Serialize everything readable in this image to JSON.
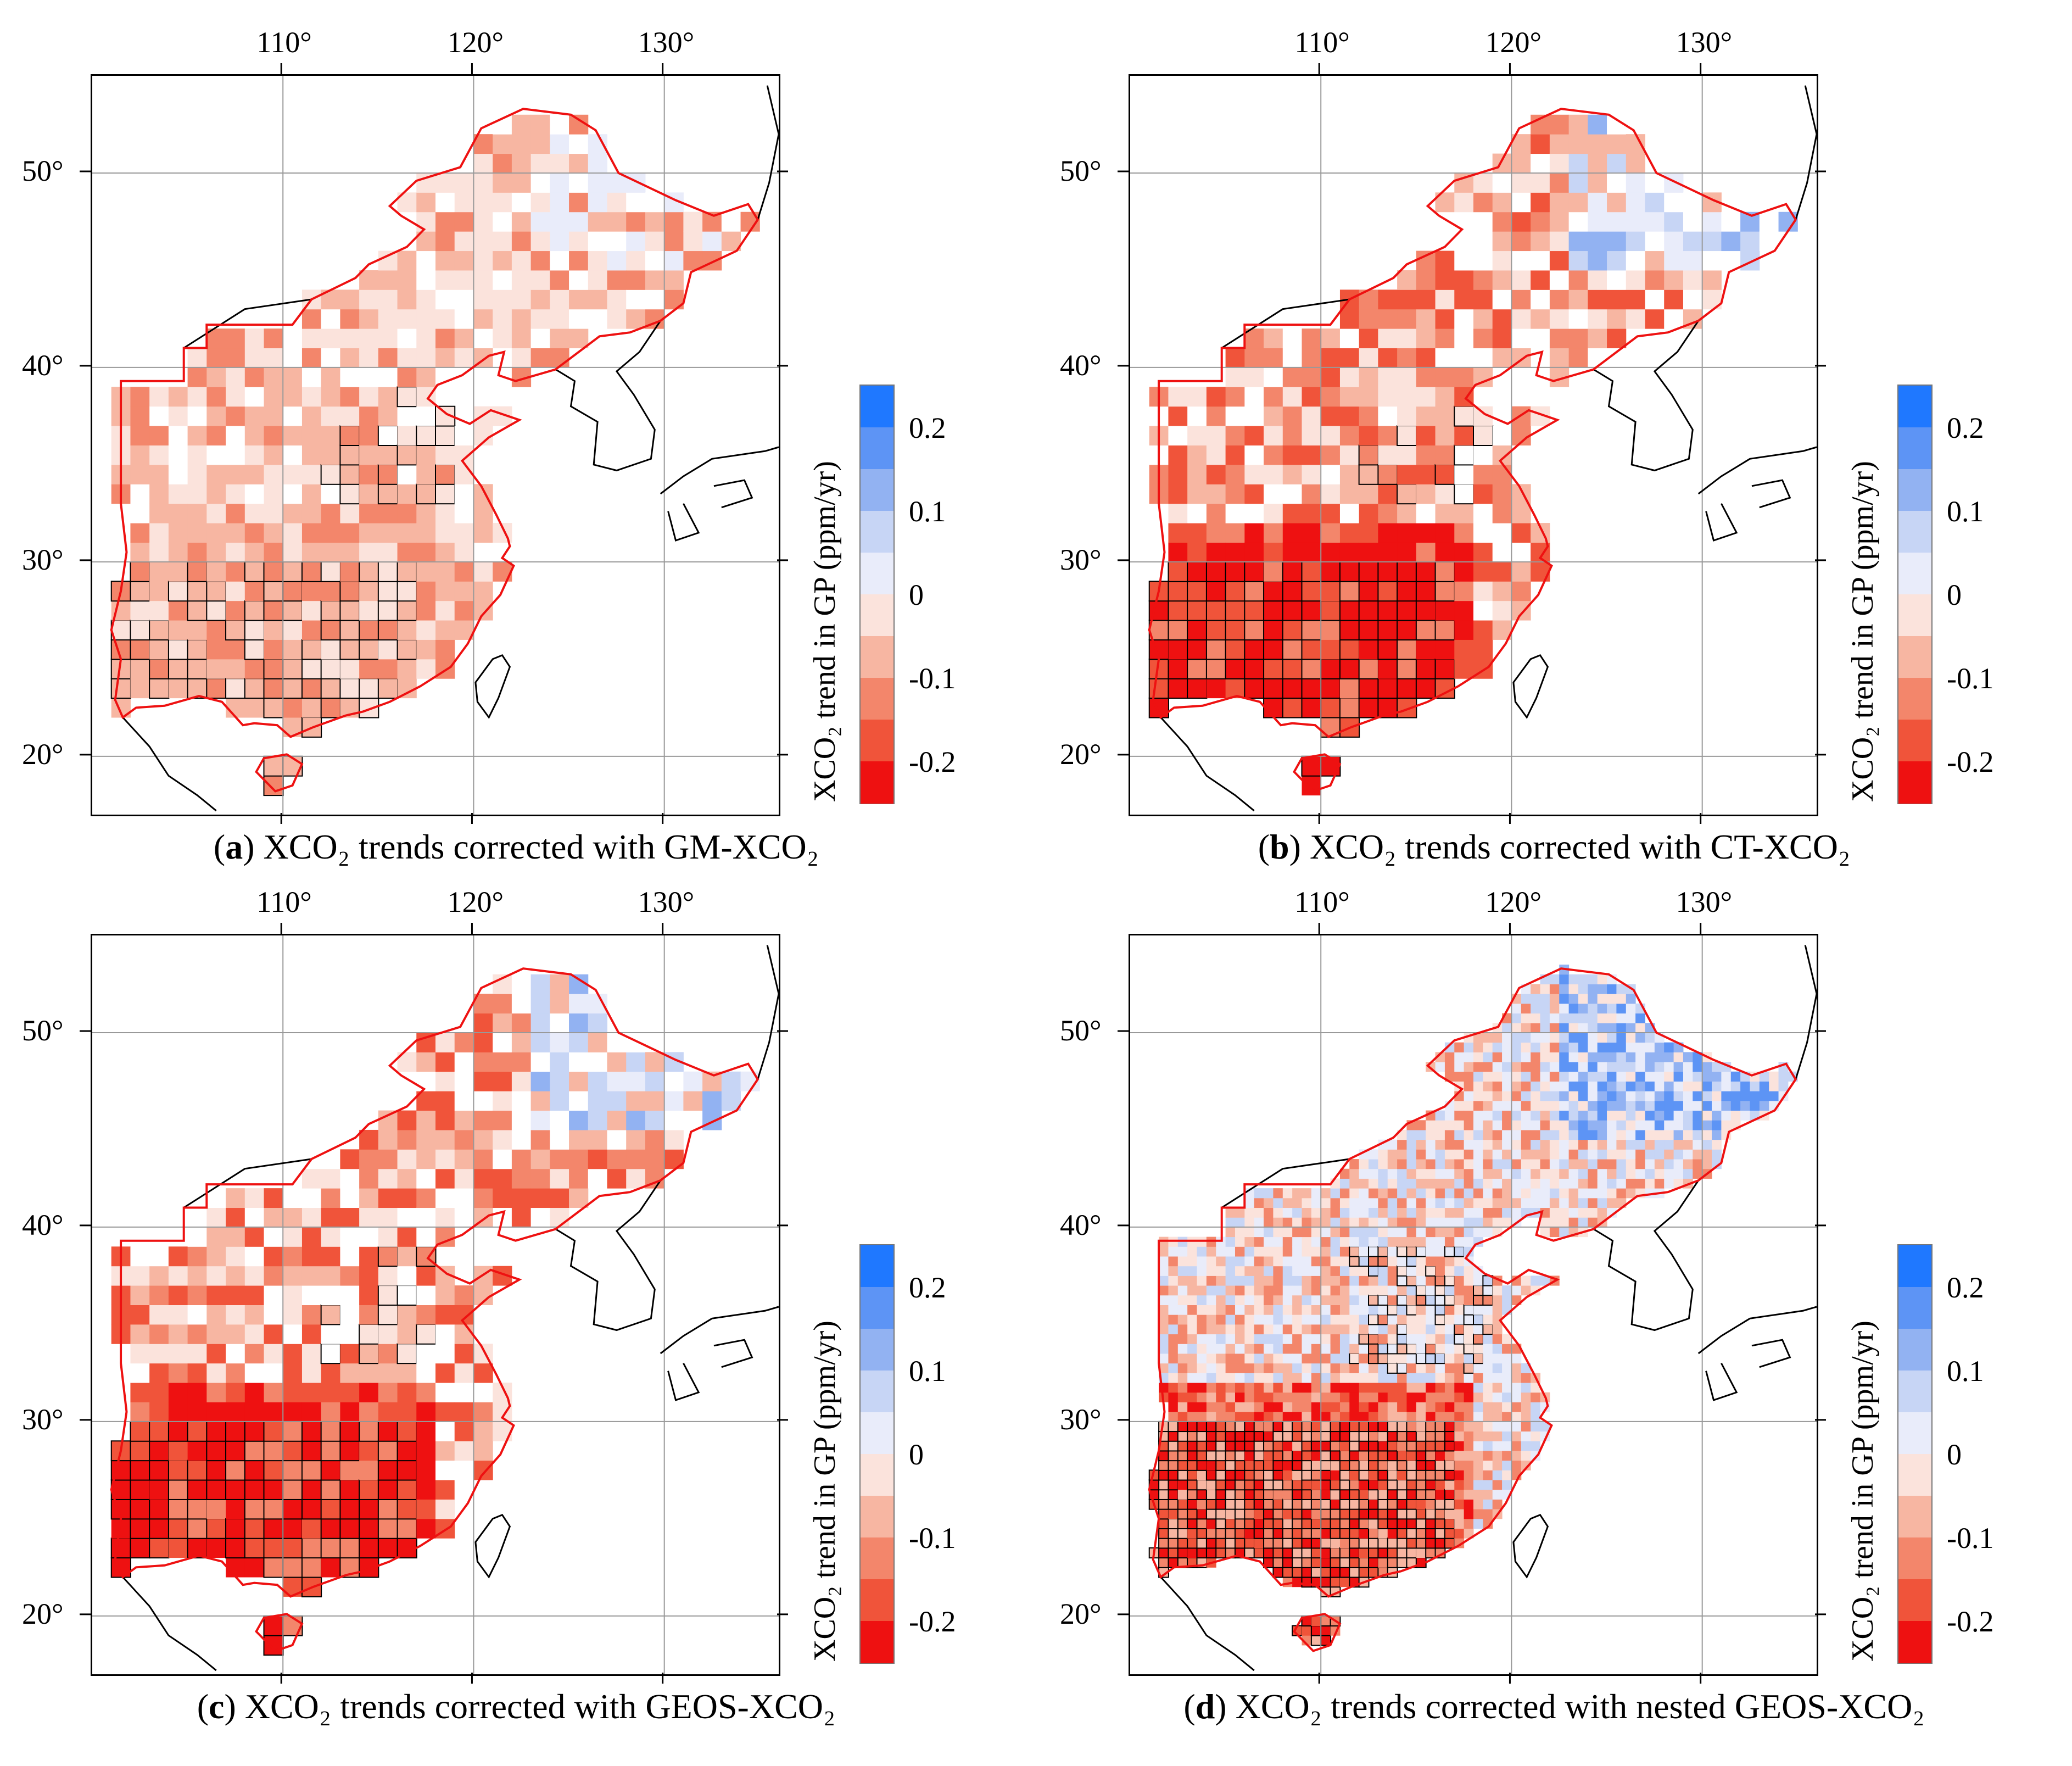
{
  "colorbar": {
    "title": "XCO₂ trend in GP (ppm/yr)",
    "tick_labels": [
      "0.2",
      "0.1",
      "0",
      "-0.1",
      "-0.2"
    ],
    "colors": [
      "#1f78ff",
      "#5d94f5",
      "#92b2f2",
      "#c7d5f5",
      "#e9ecfa",
      "#fbe3dc",
      "#f7b6a2",
      "#f3866b",
      "#f0543a",
      "#ee1111"
    ]
  },
  "axes": {
    "lon_labels": [
      "110°",
      "120°",
      "130°"
    ],
    "lat_labels": [
      "50°",
      "40°",
      "30°",
      "20°"
    ]
  },
  "panels": [
    {
      "letter": "a",
      "caption": "XCO₂ trends corrected with GM-XCO₂",
      "dominant": [
        "#fbe3dc",
        "#f7b6a2",
        "#f3866b",
        "#ffffff",
        "#fbe3dc",
        "#f7b6a2"
      ],
      "south": [
        "#f7b6a2",
        "#f3866b",
        "#fbe3dc",
        "#f7b6a2"
      ],
      "north": [
        "#fbe3dc",
        "#ffffff",
        "#f7b6a2",
        "#e9ecfa",
        "#f3866b"
      ]
    },
    {
      "letter": "b",
      "caption": "XCO₂ trends corrected with CT-XCO₂",
      "dominant": [
        "#f3866b",
        "#f7b6a2",
        "#f0543a",
        "#fbe3dc",
        "#ffffff"
      ],
      "south": [
        "#ee1111",
        "#f0543a",
        "#f3866b",
        "#ee1111"
      ],
      "north": [
        "#c7d5f5",
        "#e9ecfa",
        "#92b2f2",
        "#ffffff",
        "#f7b6a2"
      ]
    },
    {
      "letter": "c",
      "caption": "XCO₂ trends corrected with GEOS-XCO₂",
      "dominant": [
        "#f3866b",
        "#f7b6a2",
        "#fbe3dc",
        "#f0543a",
        "#ffffff"
      ],
      "south": [
        "#ee1111",
        "#f0543a",
        "#f3866b",
        "#ee1111"
      ],
      "north": [
        "#c7d5f5",
        "#e9ecfa",
        "#92b2f2",
        "#ffffff",
        "#f7b6a2"
      ]
    },
    {
      "letter": "d",
      "caption": "XCO₂ trends corrected with nested GEOS-XCO₂",
      "dominant": [
        "#fbe3dc",
        "#f7b6a2",
        "#f3866b",
        "#e9ecfa",
        "#c7d5f5"
      ],
      "south": [
        "#f0543a",
        "#f3866b",
        "#ee1111",
        "#f7b6a2"
      ],
      "north": [
        "#c7d5f5",
        "#92b2f2",
        "#e9ecfa",
        "#5d94f5",
        "#fbe3dc"
      ]
    }
  ]
}
